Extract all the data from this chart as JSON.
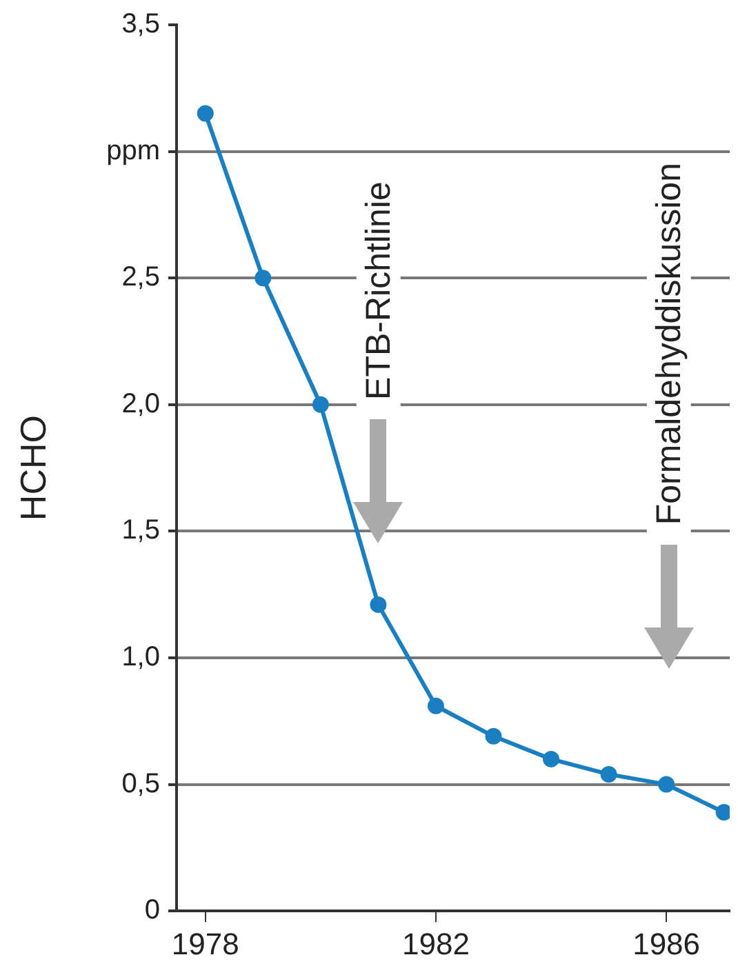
{
  "chart_data": {
    "type": "line",
    "ylabel": "HCHO",
    "x": [
      1978,
      1979,
      1980,
      1981,
      1982,
      1983,
      1984,
      1985,
      1986,
      1987
    ],
    "series": [
      {
        "color": "#1a7fc1",
        "values": [
          3.15,
          2.5,
          2.0,
          1.21,
          0.81,
          0.69,
          0.6,
          0.54,
          0.5,
          0.39
        ]
      }
    ],
    "xlim": [
      1977.5,
      1987.1
    ],
    "xticks": [
      1978,
      1982,
      1986
    ],
    "ylim": [
      0,
      3.5
    ],
    "yticks": [
      0,
      {
        "value": 0.5,
        "label": "0,5"
      },
      {
        "value": 1,
        "label": "1,0"
      },
      {
        "value": 1.5,
        "label": "1,5"
      },
      {
        "value": 2,
        "label": "2,0"
      },
      {
        "value": 2.5,
        "label": "2,5"
      },
      {
        "value": 3,
        "label": "ppm"
      },
      {
        "value": 3.5,
        "label": "3,5"
      }
    ],
    "grid": "y",
    "legend": false,
    "marker": "circle",
    "line_style": "solid",
    "annotations": [
      "ETB-Richtlinie",
      "Formaldehyddiskussion"
    ]
  }
}
